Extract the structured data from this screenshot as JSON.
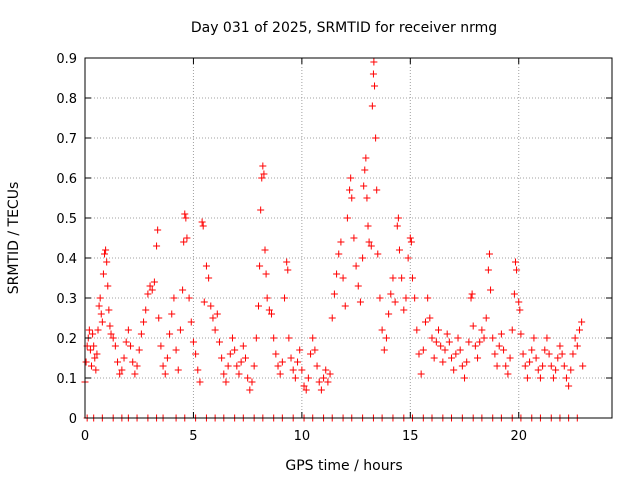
{
  "chart_data": {
    "type": "scatter",
    "title": "Day 031 of 2025, SRMTID for receiver nrmg",
    "xlabel": "GPS time / hours",
    "ylabel": "SRMTID / TECUs",
    "xlim": [
      0,
      24.3
    ],
    "ylim": [
      0,
      0.9
    ],
    "xticks": [
      0,
      5,
      10,
      15,
      20
    ],
    "xtick_labels": [
      "0",
      "5",
      "10",
      "15",
      "20"
    ],
    "yticks": [
      0,
      0.1,
      0.2,
      0.3,
      0.4,
      0.5,
      0.6,
      0.7,
      0.8,
      0.9
    ],
    "ytick_labels": [
      "0",
      "0.1",
      "0.2",
      "0.3",
      "0.4",
      "0.5",
      "0.6",
      "0.7",
      "0.8",
      "0.9"
    ],
    "grid": true,
    "marker": "+",
    "series": [
      {
        "name": "SRMTID",
        "color": "#ff0000",
        "points": [
          [
            0.0,
            0.09
          ],
          [
            0.05,
            0.14
          ],
          [
            0.1,
            0.18
          ],
          [
            0.15,
            0.2
          ],
          [
            0.2,
            0.22
          ],
          [
            0.25,
            0.17
          ],
          [
            0.3,
            0.13
          ],
          [
            0.35,
            0.21
          ],
          [
            0.4,
            0.18
          ],
          [
            0.45,
            0.15
          ],
          [
            0.5,
            0.12
          ],
          [
            0.55,
            0.16
          ],
          [
            0.6,
            0.22
          ],
          [
            0.65,
            0.28
          ],
          [
            0.7,
            0.3
          ],
          [
            0.75,
            0.26
          ],
          [
            0.8,
            0.24
          ],
          [
            0.85,
            0.36
          ],
          [
            0.9,
            0.41
          ],
          [
            0.95,
            0.42
          ],
          [
            1.0,
            0.39
          ],
          [
            1.05,
            0.33
          ],
          [
            1.1,
            0.27
          ],
          [
            1.15,
            0.23
          ],
          [
            1.2,
            0.21
          ],
          [
            1.3,
            0.2
          ],
          [
            1.4,
            0.18
          ],
          [
            1.5,
            0.14
          ],
          [
            1.6,
            0.11
          ],
          [
            1.7,
            0.12
          ],
          [
            1.8,
            0.15
          ],
          [
            1.9,
            0.19
          ],
          [
            2.0,
            0.22
          ],
          [
            2.1,
            0.18
          ],
          [
            2.2,
            0.14
          ],
          [
            2.3,
            0.11
          ],
          [
            2.4,
            0.13
          ],
          [
            2.5,
            0.17
          ],
          [
            2.6,
            0.21
          ],
          [
            2.7,
            0.24
          ],
          [
            2.8,
            0.27
          ],
          [
            2.9,
            0.31
          ],
          [
            3.0,
            0.33
          ],
          [
            3.1,
            0.32
          ],
          [
            3.2,
            0.34
          ],
          [
            3.3,
            0.43
          ],
          [
            3.35,
            0.47
          ],
          [
            3.4,
            0.25
          ],
          [
            3.5,
            0.18
          ],
          [
            3.6,
            0.13
          ],
          [
            3.7,
            0.11
          ],
          [
            3.8,
            0.15
          ],
          [
            3.9,
            0.21
          ],
          [
            4.0,
            0.26
          ],
          [
            4.1,
            0.3
          ],
          [
            4.2,
            0.17
          ],
          [
            4.3,
            0.12
          ],
          [
            4.4,
            0.22
          ],
          [
            4.5,
            0.32
          ],
          [
            4.55,
            0.44
          ],
          [
            4.6,
            0.51
          ],
          [
            4.65,
            0.5
          ],
          [
            4.7,
            0.45
          ],
          [
            4.8,
            0.3
          ],
          [
            4.9,
            0.24
          ],
          [
            5.0,
            0.19
          ],
          [
            5.1,
            0.16
          ],
          [
            5.2,
            0.12
          ],
          [
            5.3,
            0.09
          ],
          [
            5.4,
            0.49
          ],
          [
            5.45,
            0.48
          ],
          [
            5.5,
            0.29
          ],
          [
            5.6,
            0.38
          ],
          [
            5.7,
            0.35
          ],
          [
            5.8,
            0.28
          ],
          [
            5.9,
            0.25
          ],
          [
            6.0,
            0.22
          ],
          [
            6.1,
            0.26
          ],
          [
            6.2,
            0.19
          ],
          [
            6.3,
            0.15
          ],
          [
            6.4,
            0.11
          ],
          [
            6.5,
            0.09
          ],
          [
            6.6,
            0.13
          ],
          [
            6.7,
            0.16
          ],
          [
            6.8,
            0.2
          ],
          [
            6.9,
            0.17
          ],
          [
            7.0,
            0.13
          ],
          [
            7.1,
            0.11
          ],
          [
            7.2,
            0.14
          ],
          [
            7.3,
            0.18
          ],
          [
            7.4,
            0.15
          ],
          [
            7.5,
            0.1
          ],
          [
            7.6,
            0.07
          ],
          [
            7.7,
            0.09
          ],
          [
            7.8,
            0.13
          ],
          [
            7.9,
            0.2
          ],
          [
            8.0,
            0.28
          ],
          [
            8.05,
            0.38
          ],
          [
            8.1,
            0.52
          ],
          [
            8.15,
            0.6
          ],
          [
            8.2,
            0.63
          ],
          [
            8.25,
            0.61
          ],
          [
            8.3,
            0.42
          ],
          [
            8.35,
            0.36
          ],
          [
            8.4,
            0.3
          ],
          [
            8.5,
            0.27
          ],
          [
            8.6,
            0.26
          ],
          [
            8.7,
            0.2
          ],
          [
            8.8,
            0.16
          ],
          [
            8.9,
            0.13
          ],
          [
            9.0,
            0.11
          ],
          [
            9.1,
            0.14
          ],
          [
            9.2,
            0.3
          ],
          [
            9.3,
            0.39
          ],
          [
            9.35,
            0.37
          ],
          [
            9.4,
            0.2
          ],
          [
            9.5,
            0.15
          ],
          [
            9.6,
            0.12
          ],
          [
            9.7,
            0.1
          ],
          [
            9.8,
            0.14
          ],
          [
            9.9,
            0.17
          ],
          [
            10.0,
            0.12
          ],
          [
            10.1,
            0.08
          ],
          [
            10.2,
            0.07
          ],
          [
            10.3,
            0.1
          ],
          [
            10.4,
            0.16
          ],
          [
            10.5,
            0.2
          ],
          [
            10.6,
            0.17
          ],
          [
            10.7,
            0.13
          ],
          [
            10.8,
            0.09
          ],
          [
            10.9,
            0.07
          ],
          [
            11.0,
            0.1
          ],
          [
            11.1,
            0.12
          ],
          [
            11.2,
            0.09
          ],
          [
            11.3,
            0.11
          ],
          [
            11.4,
            0.25
          ],
          [
            11.5,
            0.31
          ],
          [
            11.6,
            0.36
          ],
          [
            11.7,
            0.41
          ],
          [
            11.8,
            0.44
          ],
          [
            11.9,
            0.35
          ],
          [
            12.0,
            0.28
          ],
          [
            12.1,
            0.5
          ],
          [
            12.2,
            0.57
          ],
          [
            12.25,
            0.6
          ],
          [
            12.3,
            0.55
          ],
          [
            12.4,
            0.45
          ],
          [
            12.5,
            0.38
          ],
          [
            12.6,
            0.33
          ],
          [
            12.7,
            0.29
          ],
          [
            12.8,
            0.4
          ],
          [
            12.85,
            0.58
          ],
          [
            12.9,
            0.62
          ],
          [
            12.95,
            0.65
          ],
          [
            13.0,
            0.55
          ],
          [
            13.05,
            0.48
          ],
          [
            13.1,
            0.44
          ],
          [
            13.2,
            0.43
          ],
          [
            13.25,
            0.78
          ],
          [
            13.3,
            0.86
          ],
          [
            13.32,
            0.89
          ],
          [
            13.35,
            0.83
          ],
          [
            13.4,
            0.7
          ],
          [
            13.45,
            0.57
          ],
          [
            13.5,
            0.41
          ],
          [
            13.6,
            0.3
          ],
          [
            13.7,
            0.22
          ],
          [
            13.8,
            0.17
          ],
          [
            13.9,
            0.2
          ],
          [
            14.0,
            0.26
          ],
          [
            14.1,
            0.31
          ],
          [
            14.2,
            0.35
          ],
          [
            14.3,
            0.29
          ],
          [
            14.4,
            0.48
          ],
          [
            14.45,
            0.5
          ],
          [
            14.5,
            0.42
          ],
          [
            14.6,
            0.35
          ],
          [
            14.7,
            0.27
          ],
          [
            14.8,
            0.3
          ],
          [
            14.9,
            0.4
          ],
          [
            15.0,
            0.45
          ],
          [
            15.05,
            0.44
          ],
          [
            15.1,
            0.35
          ],
          [
            15.2,
            0.3
          ],
          [
            15.3,
            0.22
          ],
          [
            15.4,
            0.16
          ],
          [
            15.5,
            0.11
          ],
          [
            15.6,
            0.17
          ],
          [
            15.7,
            0.24
          ],
          [
            15.8,
            0.3
          ],
          [
            15.9,
            0.25
          ],
          [
            16.0,
            0.2
          ],
          [
            16.1,
            0.15
          ],
          [
            16.2,
            0.19
          ],
          [
            16.3,
            0.22
          ],
          [
            16.4,
            0.18
          ],
          [
            16.5,
            0.14
          ],
          [
            16.6,
            0.17
          ],
          [
            16.7,
            0.21
          ],
          [
            16.8,
            0.19
          ],
          [
            16.9,
            0.15
          ],
          [
            17.0,
            0.12
          ],
          [
            17.1,
            0.16
          ],
          [
            17.2,
            0.2
          ],
          [
            17.3,
            0.17
          ],
          [
            17.4,
            0.13
          ],
          [
            17.5,
            0.1
          ],
          [
            17.6,
            0.14
          ],
          [
            17.7,
            0.19
          ],
          [
            17.8,
            0.3
          ],
          [
            17.85,
            0.31
          ],
          [
            17.9,
            0.23
          ],
          [
            18.0,
            0.18
          ],
          [
            18.1,
            0.15
          ],
          [
            18.2,
            0.19
          ],
          [
            18.3,
            0.22
          ],
          [
            18.4,
            0.2
          ],
          [
            18.5,
            0.25
          ],
          [
            18.6,
            0.37
          ],
          [
            18.65,
            0.41
          ],
          [
            18.7,
            0.32
          ],
          [
            18.8,
            0.2
          ],
          [
            18.9,
            0.16
          ],
          [
            19.0,
            0.13
          ],
          [
            19.1,
            0.18
          ],
          [
            19.2,
            0.21
          ],
          [
            19.3,
            0.17
          ],
          [
            19.4,
            0.13
          ],
          [
            19.5,
            0.11
          ],
          [
            19.6,
            0.15
          ],
          [
            19.7,
            0.22
          ],
          [
            19.8,
            0.31
          ],
          [
            19.85,
            0.39
          ],
          [
            19.9,
            0.37
          ],
          [
            20.0,
            0.29
          ],
          [
            20.05,
            0.27
          ],
          [
            20.1,
            0.21
          ],
          [
            20.2,
            0.16
          ],
          [
            20.3,
            0.13
          ],
          [
            20.4,
            0.1
          ],
          [
            20.5,
            0.14
          ],
          [
            20.6,
            0.17
          ],
          [
            20.7,
            0.2
          ],
          [
            20.8,
            0.15
          ],
          [
            20.9,
            0.12
          ],
          [
            21.0,
            0.1
          ],
          [
            21.1,
            0.13
          ],
          [
            21.2,
            0.17
          ],
          [
            21.3,
            0.2
          ],
          [
            21.4,
            0.16
          ],
          [
            21.5,
            0.13
          ],
          [
            21.6,
            0.1
          ],
          [
            21.7,
            0.12
          ],
          [
            21.8,
            0.15
          ],
          [
            21.9,
            0.18
          ],
          [
            22.0,
            0.16
          ],
          [
            22.1,
            0.13
          ],
          [
            22.2,
            0.1
          ],
          [
            22.3,
            0.08
          ],
          [
            22.4,
            0.12
          ],
          [
            22.5,
            0.16
          ],
          [
            22.6,
            0.2
          ],
          [
            22.7,
            0.18
          ],
          [
            22.8,
            0.22
          ],
          [
            22.9,
            0.24
          ],
          [
            22.95,
            0.13
          ],
          [
            0.1,
            0.0
          ],
          [
            0.4,
            0.0
          ],
          [
            0.8,
            0.0
          ],
          [
            1.3,
            0.0
          ],
          [
            1.7,
            0.0
          ],
          [
            2.0,
            0.0
          ],
          [
            2.4,
            0.0
          ],
          [
            2.9,
            0.0
          ],
          [
            3.3,
            0.0
          ],
          [
            3.6,
            0.0
          ],
          [
            4.2,
            0.0
          ],
          [
            4.6,
            0.0
          ],
          [
            5.1,
            0.0
          ],
          [
            5.6,
            0.0
          ],
          [
            6.0,
            0.0
          ],
          [
            6.4,
            0.0
          ],
          [
            6.9,
            0.0
          ],
          [
            7.3,
            0.0
          ],
          [
            7.8,
            0.0
          ],
          [
            8.2,
            0.0
          ],
          [
            8.7,
            0.0
          ],
          [
            9.1,
            0.0
          ],
          [
            9.6,
            0.0
          ],
          [
            10.1,
            0.0
          ],
          [
            10.5,
            0.0
          ],
          [
            11.0,
            0.0
          ],
          [
            11.4,
            0.0
          ],
          [
            11.9,
            0.0
          ],
          [
            12.3,
            0.0
          ],
          [
            12.8,
            0.0
          ],
          [
            13.3,
            0.0
          ],
          [
            13.7,
            0.0
          ],
          [
            14.2,
            0.0
          ],
          [
            14.7,
            0.0
          ],
          [
            15.1,
            0.0
          ],
          [
            15.6,
            0.0
          ],
          [
            16.0,
            0.0
          ],
          [
            16.5,
            0.0
          ],
          [
            16.9,
            0.0
          ],
          [
            17.4,
            0.0
          ],
          [
            17.9,
            0.0
          ],
          [
            18.3,
            0.0
          ],
          [
            18.8,
            0.0
          ],
          [
            19.2,
            0.0
          ],
          [
            19.7,
            0.0
          ],
          [
            20.1,
            0.0
          ],
          [
            20.6,
            0.0
          ],
          [
            21.0,
            0.0
          ],
          [
            21.5,
            0.0
          ],
          [
            21.9,
            0.0
          ],
          [
            22.3,
            0.0
          ],
          [
            22.7,
            0.0
          ]
        ]
      }
    ]
  }
}
